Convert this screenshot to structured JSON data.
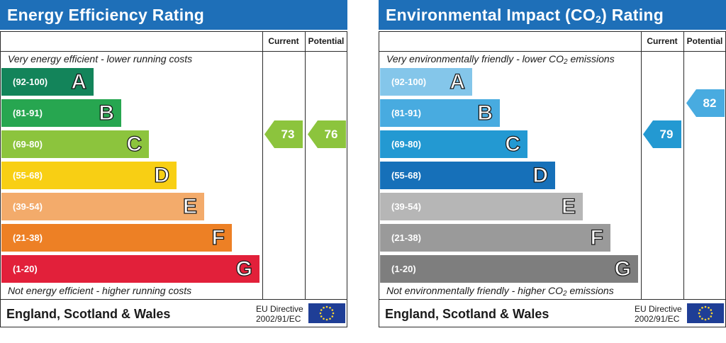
{
  "chart_data": [
    {
      "type": "bar",
      "title": "Energy Efficiency Rating",
      "top_caption": "Very energy efficient - lower running costs",
      "bottom_caption": "Not energy efficient - higher running costs",
      "column_headers": [
        "Current",
        "Potential"
      ],
      "categories": [
        "(92-100)",
        "(81-91)",
        "(69-80)",
        "(55-68)",
        "(39-54)",
        "(21-38)",
        "(1-20)"
      ],
      "letters": [
        "A",
        "B",
        "C",
        "D",
        "E",
        "F",
        "G"
      ],
      "colors": [
        "#13845a",
        "#27a650",
        "#8cc43d",
        "#f8cf14",
        "#f3ab6b",
        "#ed8025",
        "#e2203a"
      ],
      "current": {
        "value": "73",
        "band": "C",
        "color": "#8cc43d"
      },
      "potential": {
        "value": "76",
        "band": "C",
        "color": "#8cc43d"
      },
      "footer_country": "England, Scotland & Wales",
      "eu_line1": "EU Directive",
      "eu_line2": "2002/91/EC"
    },
    {
      "type": "bar",
      "title": "Environmental Impact (CO2) Rating",
      "top_caption": "Very environmentally friendly - lower CO2 emissions",
      "bottom_caption": "Not environmentally friendly - higher CO2 emissions",
      "column_headers": [
        "Current",
        "Potential"
      ],
      "categories": [
        "(92-100)",
        "(81-91)",
        "(69-80)",
        "(55-68)",
        "(39-54)",
        "(21-38)",
        "(1-20)"
      ],
      "letters": [
        "A",
        "B",
        "C",
        "D",
        "E",
        "F",
        "G"
      ],
      "colors": [
        "#84c6ea",
        "#48abe0",
        "#2399d2",
        "#1670b9",
        "#b6b6b6",
        "#9a9a9a",
        "#7e7e7e"
      ],
      "current": {
        "value": "79",
        "band": "C",
        "color": "#2399d2"
      },
      "potential": {
        "value": "82",
        "band": "B",
        "color": "#48abe0"
      },
      "footer_country": "England, Scotland & Wales",
      "eu_line1": "EU Directive",
      "eu_line2": "2002/91/EC"
    }
  ]
}
